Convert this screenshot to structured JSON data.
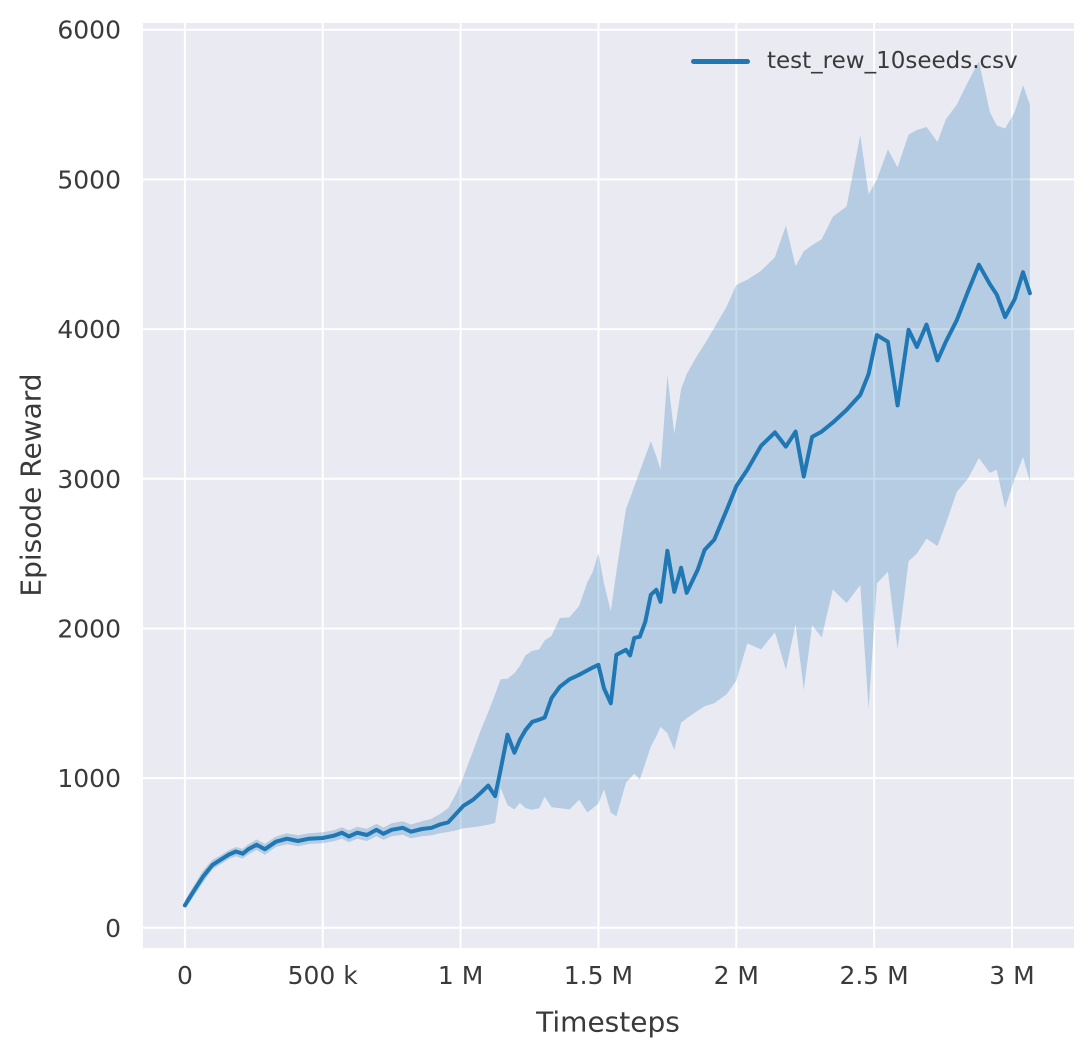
{
  "figure": {
    "background": "#ffffff"
  },
  "chart_data": {
    "type": "line",
    "title": "",
    "xlabel": "Timesteps",
    "ylabel": "Episode Reward",
    "xlim": [
      -152000,
      3225000
    ],
    "ylim": [
      -135,
      6045
    ],
    "grid": true,
    "legend_position": "upper right",
    "plot_bg": "#eaeaf2",
    "grid_color": "#ffffff",
    "text_color": "#3a3a3a",
    "x_ticks": [
      {
        "value": 0,
        "label": "0"
      },
      {
        "value": 500000,
        "label": "500 k"
      },
      {
        "value": 1000000,
        "label": "1 M"
      },
      {
        "value": 1500000,
        "label": "1.5 M"
      },
      {
        "value": 2000000,
        "label": "2 M"
      },
      {
        "value": 2500000,
        "label": "2.5 M"
      },
      {
        "value": 3000000,
        "label": "3 M"
      }
    ],
    "y_ticks": [
      {
        "value": 0,
        "label": "0"
      },
      {
        "value": 1000,
        "label": "1000"
      },
      {
        "value": 2000,
        "label": "2000"
      },
      {
        "value": 3000,
        "label": "3000"
      },
      {
        "value": 4000,
        "label": "4000"
      },
      {
        "value": 5000,
        "label": "5000"
      },
      {
        "value": 6000,
        "label": "6000"
      }
    ],
    "series": [
      {
        "name": "test_rew_10seeds.csv",
        "color": "#1f77b4",
        "band_color": "rgba(31,119,180,0.26)",
        "line_width": 4,
        "x": [
          0,
          30000,
          65000,
          100000,
          130000,
          160000,
          185000,
          210000,
          230000,
          260000,
          290000,
          330000,
          370000,
          410000,
          450000,
          500000,
          540000,
          570000,
          595000,
          625000,
          660000,
          695000,
          720000,
          750000,
          790000,
          820000,
          860000,
          895000,
          925000,
          955000,
          985000,
          1010000,
          1045000,
          1075000,
          1100000,
          1125000,
          1145000,
          1170000,
          1195000,
          1215000,
          1235000,
          1260000,
          1285000,
          1305000,
          1330000,
          1360000,
          1395000,
          1430000,
          1460000,
          1480000,
          1500000,
          1520000,
          1545000,
          1565000,
          1600000,
          1615000,
          1630000,
          1650000,
          1670000,
          1690000,
          1710000,
          1725000,
          1750000,
          1775000,
          1800000,
          1820000,
          1860000,
          1885000,
          1920000,
          1965000,
          2000000,
          2040000,
          2090000,
          2140000,
          2180000,
          2215000,
          2245000,
          2275000,
          2310000,
          2350000,
          2400000,
          2450000,
          2480000,
          2510000,
          2550000,
          2585000,
          2625000,
          2655000,
          2690000,
          2730000,
          2760000,
          2800000,
          2840000,
          2880000,
          2920000,
          2945000,
          2975000,
          3010000,
          3040000,
          3065000
        ],
        "mean": [
          150,
          240,
          340,
          420,
          455,
          490,
          510,
          495,
          525,
          555,
          525,
          575,
          595,
          580,
          595,
          600,
          615,
          635,
          610,
          635,
          620,
          655,
          628,
          655,
          668,
          642,
          660,
          668,
          690,
          705,
          765,
          815,
          855,
          905,
          950,
          880,
          1055,
          1290,
          1170,
          1256,
          1320,
          1376,
          1390,
          1405,
          1535,
          1610,
          1660,
          1690,
          1720,
          1740,
          1757,
          1600,
          1500,
          1824,
          1857,
          1820,
          1937,
          1945,
          2045,
          2225,
          2258,
          2178,
          2519,
          2245,
          2405,
          2238,
          2392,
          2525,
          2592,
          2790,
          2950,
          3060,
          3220,
          3310,
          3215,
          3315,
          3015,
          3280,
          3315,
          3375,
          3460,
          3560,
          3700,
          3960,
          3915,
          3490,
          3995,
          3880,
          4030,
          3790,
          3915,
          4060,
          4250,
          4430,
          4300,
          4230,
          4080,
          4200,
          4380,
          4240
        ],
        "lower": [
          120,
          205,
          300,
          390,
          425,
          460,
          478,
          462,
          490,
          520,
          488,
          540,
          558,
          545,
          560,
          565,
          578,
          595,
          572,
          595,
          580,
          612,
          588,
          612,
          622,
          598,
          612,
          618,
          632,
          640,
          652,
          665,
          672,
          680,
          688,
          700,
          935,
          820,
          790,
          835,
          800,
          788,
          800,
          875,
          805,
          800,
          790,
          855,
          770,
          800,
          830,
          925,
          770,
          745,
          970,
          1000,
          1030,
          990,
          1100,
          1210,
          1280,
          1343,
          1300,
          1190,
          1370,
          1400,
          1450,
          1480,
          1500,
          1560,
          1650,
          1900,
          1860,
          1975,
          1724,
          2030,
          1590,
          2020,
          1940,
          2260,
          2170,
          2290,
          1460,
          2300,
          2380,
          1860,
          2450,
          2500,
          2600,
          2550,
          2700,
          2912,
          3000,
          3139,
          3039,
          3059,
          2805,
          3000,
          3146,
          2980
        ],
        "upper": [
          185,
          275,
          380,
          455,
          485,
          520,
          540,
          528,
          558,
          590,
          562,
          610,
          632,
          618,
          632,
          638,
          652,
          672,
          650,
          675,
          662,
          695,
          670,
          698,
          712,
          690,
          712,
          728,
          760,
          800,
          900,
          1010,
          1180,
          1330,
          1440,
          1560,
          1660,
          1665,
          1700,
          1750,
          1820,
          1850,
          1860,
          1920,
          1950,
          2070,
          2075,
          2150,
          2310,
          2380,
          2505,
          2300,
          2115,
          2380,
          2800,
          2870,
          2950,
          3050,
          3150,
          3250,
          3150,
          3060,
          3690,
          3300,
          3600,
          3700,
          3828,
          3900,
          4008,
          4150,
          4295,
          4330,
          4390,
          4480,
          4690,
          4420,
          4520,
          4560,
          4600,
          4750,
          4820,
          5295,
          4900,
          5000,
          5200,
          5080,
          5300,
          5330,
          5350,
          5250,
          5400,
          5500,
          5650,
          5790,
          5450,
          5360,
          5340,
          5450,
          5630,
          5500
        ]
      }
    ]
  }
}
